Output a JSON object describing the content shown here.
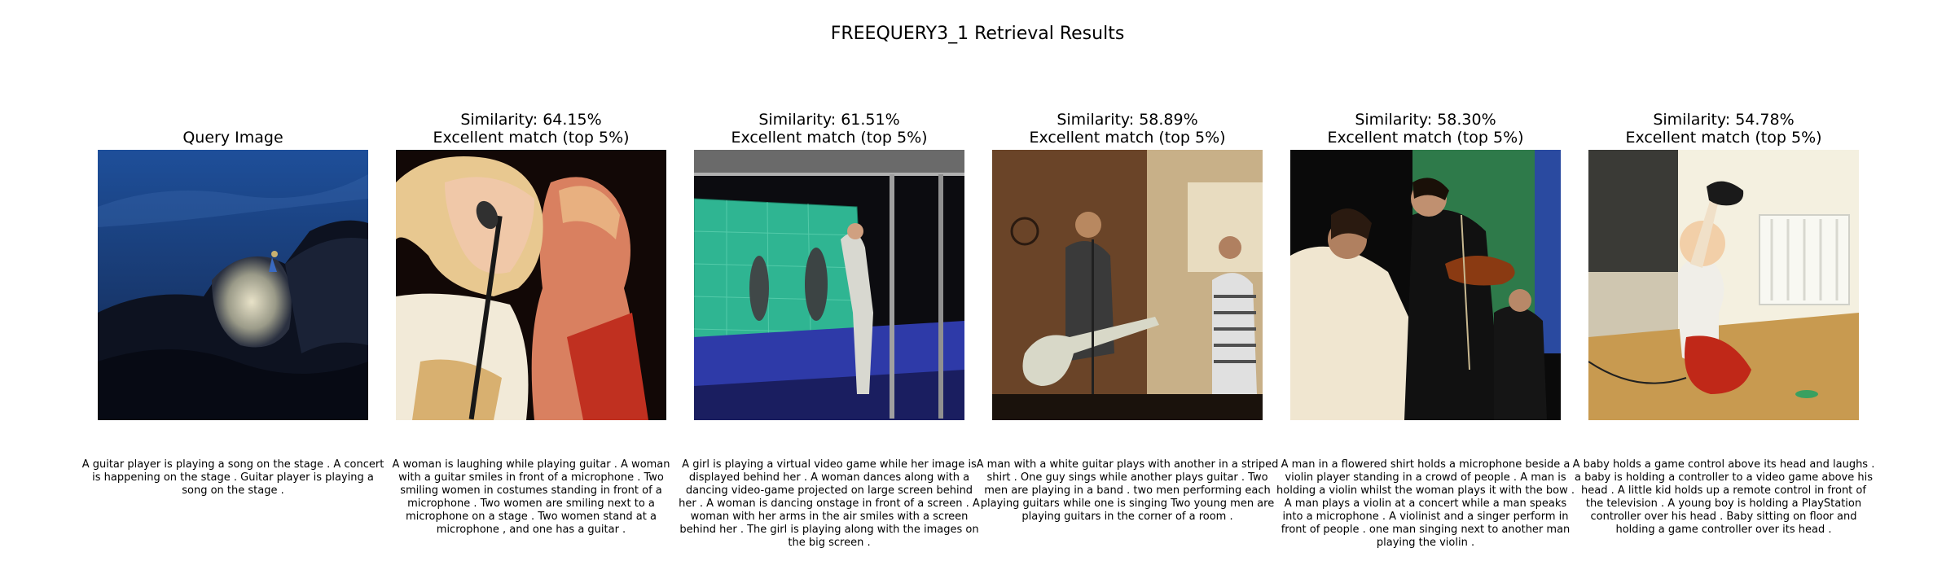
{
  "figure": {
    "title": "FREEQUERY3_1 Retrieval Results"
  },
  "query": {
    "title": "Query Image",
    "caption": "A guitar player is playing a song on the stage . A concert is happening on the stage . Guitar player is playing a song on the stage ."
  },
  "results": [
    {
      "similarity": "Similarity: 64.15%",
      "match": "Excellent match (top 5%)",
      "caption": "A woman is laughing while playing guitar . A woman with a guitar smiles in front of a microphone . Two smiling women in costumes standing in front of a microphone . Two women are smiling next to a microphone on a stage . Two women stand at a microphone , and one has a guitar ."
    },
    {
      "similarity": "Similarity: 61.51%",
      "match": "Excellent match (top 5%)",
      "caption": "A girl is playing a virtual video game while her image is displayed behind her . A woman dances along with a dancing video-game projected on large screen behind her . A woman is dancing onstage in front of a screen . A woman with her arms in the air smiles with a screen behind her . The girl is playing along with the images on the big screen ."
    },
    {
      "similarity": "Similarity: 58.89%",
      "match": "Excellent match (top 5%)",
      "caption": "A man with a white guitar plays with another in a striped shirt . One guy sings while another plays guitar . Two men are playing in a band . two men performing each playing guitars while one is singing Two young men are playing guitars in the corner of a room ."
    },
    {
      "similarity": "Similarity: 58.30%",
      "match": "Excellent match (top 5%)",
      "caption": "A man in a flowered shirt holds a microphone beside a violin player standing in a crowd of people . A man is holding a violin whilst the woman plays it with the bow . A man plays a violin at a concert while a man speaks into a microphone . A violinist and a singer perform in front of people . one man singing next to another man playing the violin ."
    },
    {
      "similarity": "Similarity: 54.78%",
      "match": "Excellent match (top 5%)",
      "caption": "A baby holds a game control above its head and laughs . a baby is holding a controller to a video game above his head . A little kid holds up a remote control in front of the television . A young boy is holding a PlayStation controller over his head . Baby sitting on floor and holding a game controller over its head ."
    }
  ]
}
